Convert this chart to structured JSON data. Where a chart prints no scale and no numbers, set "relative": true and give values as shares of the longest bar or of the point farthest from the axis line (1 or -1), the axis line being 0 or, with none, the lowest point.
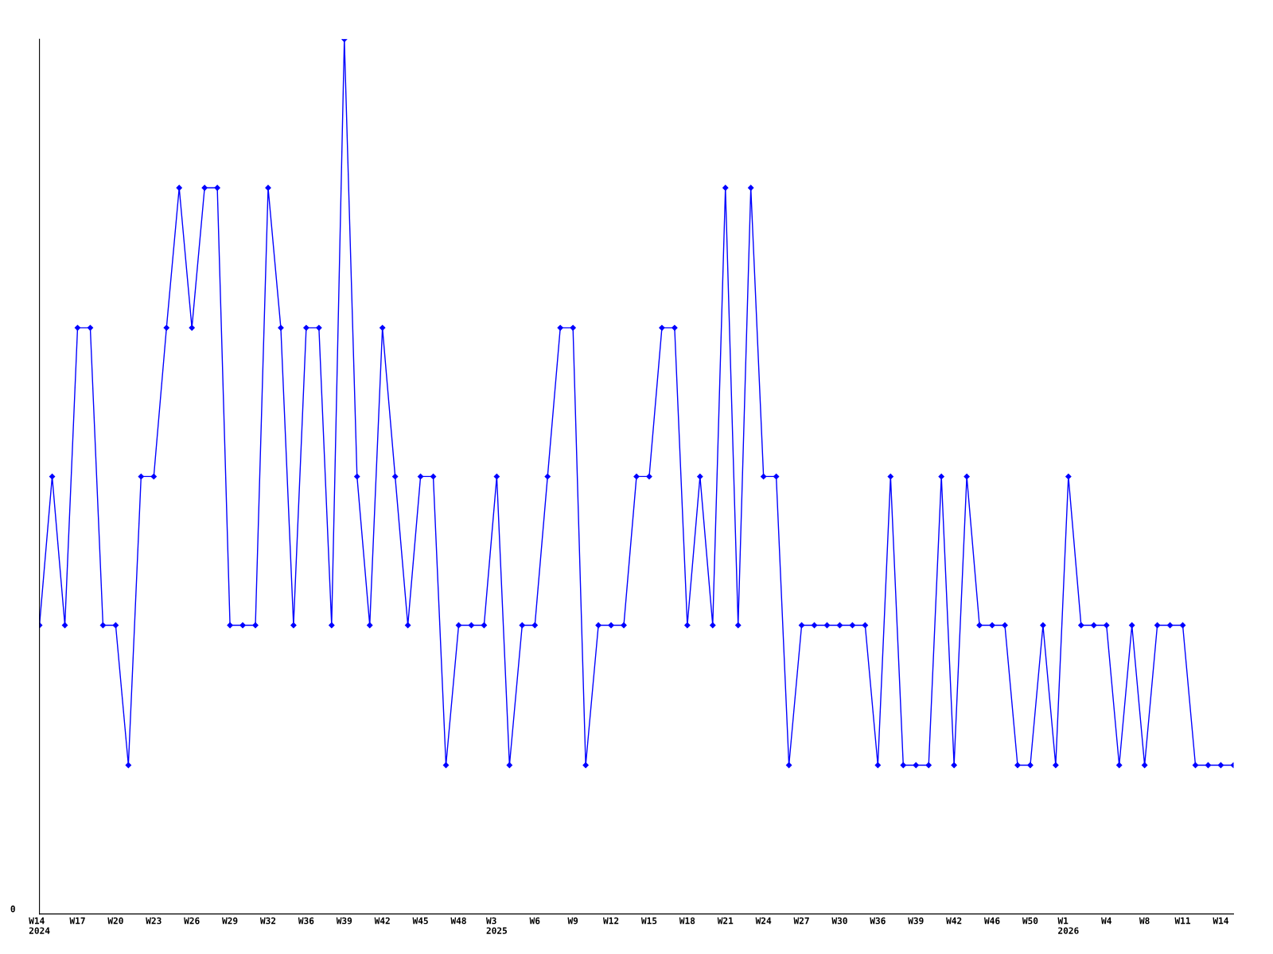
{
  "chart_data": {
    "type": "line",
    "relative": true,
    "color": "#0000ff",
    "marker": "diamond",
    "grid": false,
    "annotations": [
      "0"
    ],
    "categories": [
      "W14\n2024",
      null,
      null,
      "W17",
      null,
      null,
      "W20",
      null,
      null,
      "W23",
      null,
      null,
      "W26",
      null,
      null,
      "W29",
      null,
      null,
      "W32",
      null,
      null,
      "W36",
      null,
      null,
      "W39",
      null,
      null,
      "W42",
      null,
      null,
      "W45",
      null,
      null,
      "W48",
      null,
      null,
      "W3\n2025",
      null,
      null,
      "W6",
      null,
      null,
      "W9",
      null,
      null,
      "W12",
      null,
      null,
      "W15",
      null,
      null,
      "W18",
      null,
      null,
      "W21",
      null,
      null,
      "W24",
      null,
      null,
      "W27",
      null,
      null,
      "W30",
      null,
      null,
      "W36",
      null,
      null,
      "W39",
      null,
      null,
      "W42",
      null,
      null,
      "W46",
      null,
      null,
      "W50",
      null,
      null,
      "W1\n2026",
      null,
      null,
      "W4",
      null,
      null,
      "W8",
      null,
      null,
      "W11",
      null,
      null,
      "W14",
      null
    ],
    "values": [
      0.33,
      0.5,
      0.33,
      0.67,
      0.67,
      0.33,
      0.33,
      0.17,
      0.5,
      0.5,
      0.67,
      0.83,
      0.67,
      0.83,
      0.83,
      0.33,
      0.33,
      0.33,
      0.83,
      0.67,
      0.33,
      0.67,
      0.67,
      0.33,
      1,
      0.5,
      0.33,
      0.67,
      0.5,
      0.33,
      0.5,
      0.5,
      0.17,
      0.33,
      0.33,
      0.33,
      0.5,
      0.17,
      0.33,
      0.33,
      0.5,
      0.67,
      0.67,
      0.17,
      0.33,
      0.33,
      0.33,
      0.5,
      0.5,
      0.67,
      0.67,
      0.33,
      0.5,
      0.33,
      0.83,
      0.33,
      0.83,
      0.5,
      0.5,
      0.17,
      0.33,
      0.33,
      0.33,
      0.33,
      0.33,
      0.33,
      0.17,
      0.5,
      0.17,
      0.17,
      0.17,
      0.5,
      0.17,
      0.5,
      0.33,
      0.33,
      0.33,
      0.17,
      0.17,
      0.33,
      0.17,
      0.5,
      0.33,
      0.33,
      0.33,
      0.17,
      0.33,
      0.17,
      0.33,
      0.33,
      0.33,
      0.17,
      0.17,
      0.17,
      0.17
    ]
  }
}
